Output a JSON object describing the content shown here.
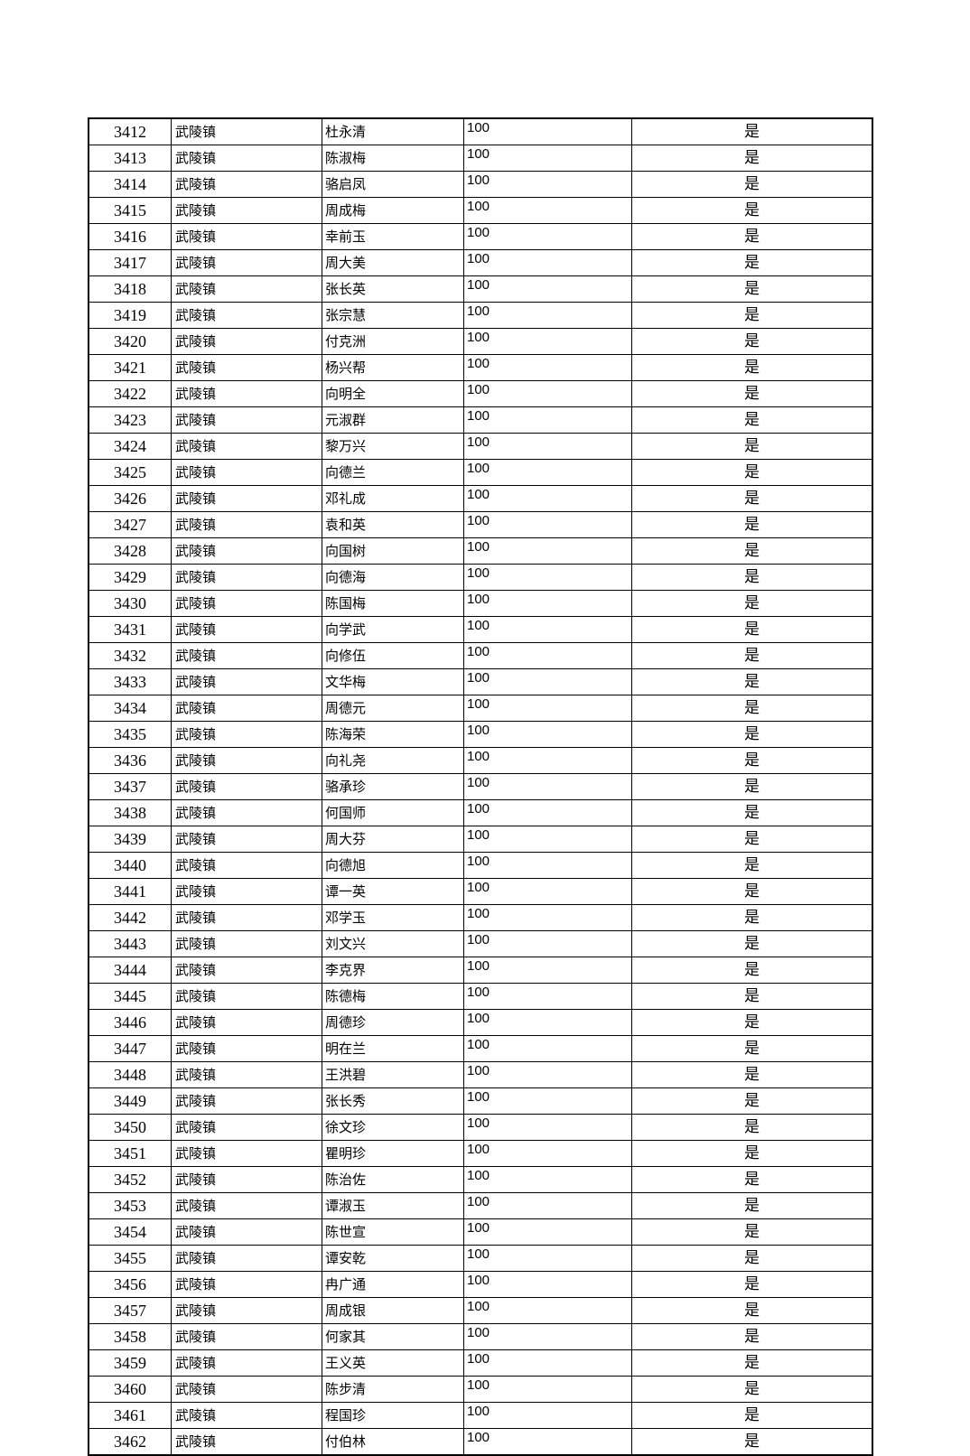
{
  "table": {
    "rows": [
      [
        "3412",
        "武陵镇",
        "杜永清",
        "100",
        "是"
      ],
      [
        "3413",
        "武陵镇",
        "陈淑梅",
        "100",
        "是"
      ],
      [
        "3414",
        "武陵镇",
        "骆启凤",
        "100",
        "是"
      ],
      [
        "3415",
        "武陵镇",
        "周成梅",
        "100",
        "是"
      ],
      [
        "3416",
        "武陵镇",
        "幸前玉",
        "100",
        "是"
      ],
      [
        "3417",
        "武陵镇",
        "周大美",
        "100",
        "是"
      ],
      [
        "3418",
        "武陵镇",
        "张长英",
        "100",
        "是"
      ],
      [
        "3419",
        "武陵镇",
        "张宗慧",
        "100",
        "是"
      ],
      [
        "3420",
        "武陵镇",
        "付克洲",
        "100",
        "是"
      ],
      [
        "3421",
        "武陵镇",
        "杨兴帮",
        "100",
        "是"
      ],
      [
        "3422",
        "武陵镇",
        "向明全",
        "100",
        "是"
      ],
      [
        "3423",
        "武陵镇",
        "元淑群",
        "100",
        "是"
      ],
      [
        "3424",
        "武陵镇",
        "黎万兴",
        "100",
        "是"
      ],
      [
        "3425",
        "武陵镇",
        "向德兰",
        "100",
        "是"
      ],
      [
        "3426",
        "武陵镇",
        "邓礼成",
        "100",
        "是"
      ],
      [
        "3427",
        "武陵镇",
        "袁和英",
        "100",
        "是"
      ],
      [
        "3428",
        "武陵镇",
        "向国树",
        "100",
        "是"
      ],
      [
        "3429",
        "武陵镇",
        "向德海",
        "100",
        "是"
      ],
      [
        "3430",
        "武陵镇",
        "陈国梅",
        "100",
        "是"
      ],
      [
        "3431",
        "武陵镇",
        "向学武",
        "100",
        "是"
      ],
      [
        "3432",
        "武陵镇",
        "向修伍",
        "100",
        "是"
      ],
      [
        "3433",
        "武陵镇",
        "文华梅",
        "100",
        "是"
      ],
      [
        "3434",
        "武陵镇",
        "周德元",
        "100",
        "是"
      ],
      [
        "3435",
        "武陵镇",
        "陈海荣",
        "100",
        "是"
      ],
      [
        "3436",
        "武陵镇",
        "向礼尧",
        "100",
        "是"
      ],
      [
        "3437",
        "武陵镇",
        "骆承珍",
        "100",
        "是"
      ],
      [
        "3438",
        "武陵镇",
        "何国师",
        "100",
        "是"
      ],
      [
        "3439",
        "武陵镇",
        "周大芬",
        "100",
        "是"
      ],
      [
        "3440",
        "武陵镇",
        "向德旭",
        "100",
        "是"
      ],
      [
        "3441",
        "武陵镇",
        "谭一英",
        "100",
        "是"
      ],
      [
        "3442",
        "武陵镇",
        "邓学玉",
        "100",
        "是"
      ],
      [
        "3443",
        "武陵镇",
        "刘文兴",
        "100",
        "是"
      ],
      [
        "3444",
        "武陵镇",
        "李克界",
        "100",
        "是"
      ],
      [
        "3445",
        "武陵镇",
        "陈德梅",
        "100",
        "是"
      ],
      [
        "3446",
        "武陵镇",
        "周德珍",
        "100",
        "是"
      ],
      [
        "3447",
        "武陵镇",
        "明在兰",
        "100",
        "是"
      ],
      [
        "3448",
        "武陵镇",
        "王洪碧",
        "100",
        "是"
      ],
      [
        "3449",
        "武陵镇",
        "张长秀",
        "100",
        "是"
      ],
      [
        "3450",
        "武陵镇",
        "徐文珍",
        "100",
        "是"
      ],
      [
        "3451",
        "武陵镇",
        "瞿明珍",
        "100",
        "是"
      ],
      [
        "3452",
        "武陵镇",
        "陈治佐",
        "100",
        "是"
      ],
      [
        "3453",
        "武陵镇",
        "谭淑玉",
        "100",
        "是"
      ],
      [
        "3454",
        "武陵镇",
        "陈世宣",
        "100",
        "是"
      ],
      [
        "3455",
        "武陵镇",
        "谭安乾",
        "100",
        "是"
      ],
      [
        "3456",
        "武陵镇",
        "冉广通",
        "100",
        "是"
      ],
      [
        "3457",
        "武陵镇",
        "周成银",
        "100",
        "是"
      ],
      [
        "3458",
        "武陵镇",
        "何家其",
        "100",
        "是"
      ],
      [
        "3459",
        "武陵镇",
        "王义英",
        "100",
        "是"
      ],
      [
        "3460",
        "武陵镇",
        "陈步清",
        "100",
        "是"
      ],
      [
        "3461",
        "武陵镇",
        "程国珍",
        "100",
        "是"
      ],
      [
        "3462",
        "武陵镇",
        "付伯林",
        "100",
        "是"
      ]
    ]
  }
}
